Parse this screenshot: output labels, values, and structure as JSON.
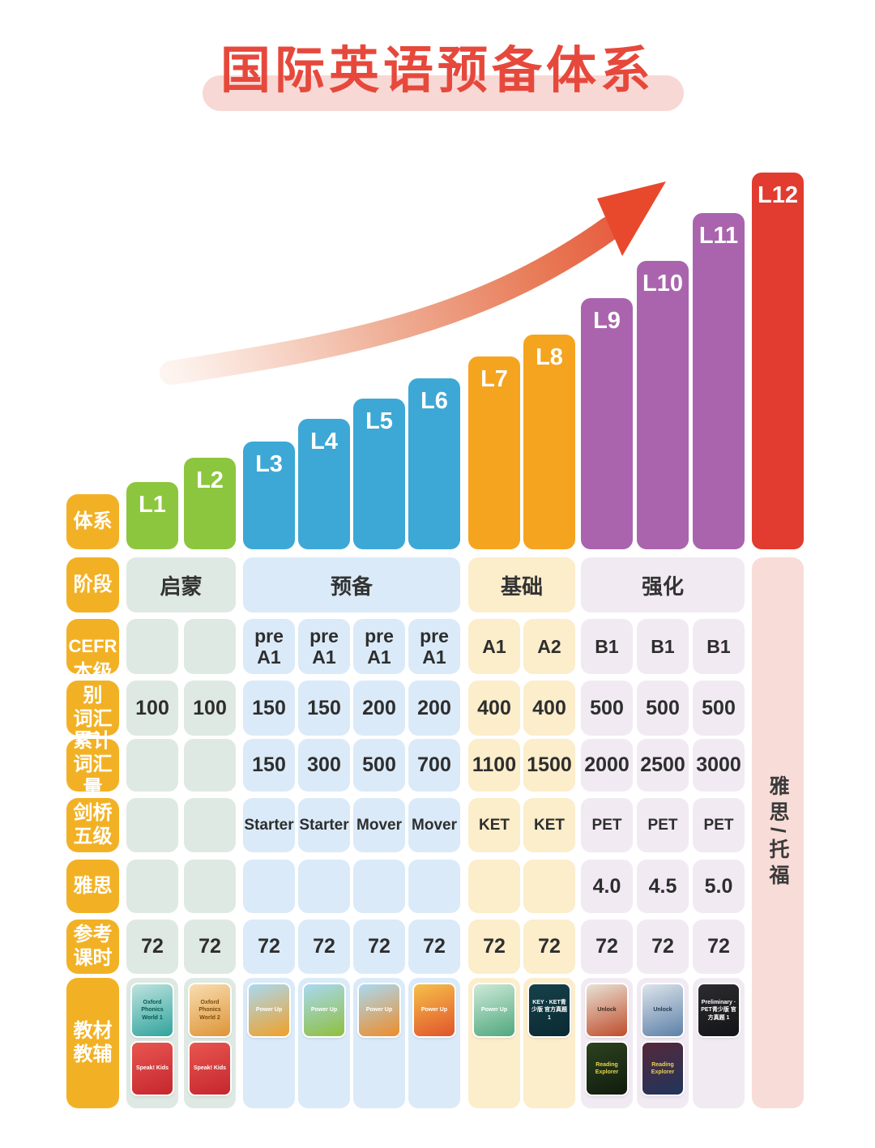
{
  "title": "国际英语预备体系",
  "palette": {
    "title_red": "#e6493c",
    "title_pill": "#f8d8d4",
    "label_bg": "#f2b125",
    "bar_green": "#8cc63e",
    "bar_blue": "#3da8d5",
    "bar_orange": "#f5a41f",
    "bar_purple": "#aa64ad",
    "bar_red": "#e23b2f",
    "cell_sage": "#dfe9e3",
    "cell_blue": "#daeaf8",
    "cell_cream": "#fcedcb",
    "cell_lavender": "#f1eaf3",
    "cell_pink": "#f8dcd8",
    "arrow_red": "#e64a2e",
    "text_dark": "#2e2e2e"
  },
  "row_headers": [
    {
      "id": "system",
      "lines": [
        "体系"
      ]
    },
    {
      "id": "stage",
      "lines": [
        "阶段"
      ]
    },
    {
      "id": "cefr",
      "lines": [
        "CEFR"
      ]
    },
    {
      "id": "level-vocab",
      "lines": [
        "本级别",
        "词汇量"
      ]
    },
    {
      "id": "cumulative-vocab",
      "lines": [
        "累计",
        "词汇量"
      ]
    },
    {
      "id": "cambridge-five",
      "lines": [
        "剑桥",
        "五级"
      ]
    },
    {
      "id": "ielts",
      "lines": [
        "雅思"
      ]
    },
    {
      "id": "reference-hours",
      "lines": [
        "参考",
        "课时"
      ]
    },
    {
      "id": "materials",
      "lines": [
        "教材",
        "教辅"
      ]
    }
  ],
  "stages": [
    {
      "id": "enlightenment",
      "label": "启蒙",
      "cols": [
        0,
        1
      ]
    },
    {
      "id": "preparation",
      "label": "预备",
      "cols": [
        2,
        5
      ]
    },
    {
      "id": "foundation",
      "label": "基础",
      "cols": [
        6,
        7
      ]
    },
    {
      "id": "intensive",
      "label": "强化",
      "cols": [
        8,
        10
      ]
    }
  ],
  "l12_column": {
    "label": "雅思/托福"
  },
  "levels": [
    {
      "id": "L1",
      "cefr": "",
      "level_vocab": "100",
      "cum_vocab": "",
      "cambridge": "",
      "ielts": "",
      "hours": "72",
      "books": [
        {
          "title": "Oxford Phonics World 1",
          "c1": "#bfe3df",
          "c2": "#2fa49c",
          "tc": "#06564f"
        },
        {
          "title": "Speak! Kids",
          "c1": "#e8564f",
          "c2": "#c5262f",
          "tc": "#ffffff"
        }
      ]
    },
    {
      "id": "L2",
      "cefr": "",
      "level_vocab": "100",
      "cum_vocab": "",
      "cambridge": "",
      "ielts": "",
      "hours": "72",
      "books": [
        {
          "title": "Oxford Phonics World 2",
          "c1": "#f8ddb0",
          "c2": "#de9436",
          "tc": "#7a4a08"
        },
        {
          "title": "Speak! Kids",
          "c1": "#e8564f",
          "c2": "#c5262f",
          "tc": "#ffffff"
        }
      ]
    },
    {
      "id": "L3",
      "cefr": "pre A1",
      "level_vocab": "150",
      "cum_vocab": "150",
      "cambridge": "Starter",
      "ielts": "",
      "hours": "72",
      "books": [
        {
          "title": "Power Up",
          "c1": "#a9d9f1",
          "c2": "#f0a028",
          "tc": "#ffffff"
        }
      ]
    },
    {
      "id": "L4",
      "cefr": "pre A1",
      "level_vocab": "150",
      "cum_vocab": "300",
      "cambridge": "Starter",
      "ielts": "",
      "hours": "72",
      "books": [
        {
          "title": "Power Up",
          "c1": "#a9d9f1",
          "c2": "#8fbf3d",
          "tc": "#ffffff"
        }
      ]
    },
    {
      "id": "L5",
      "cefr": "pre A1",
      "level_vocab": "200",
      "cum_vocab": "500",
      "cambridge": "Mover",
      "ielts": "",
      "hours": "72",
      "books": [
        {
          "title": "Power Up",
          "c1": "#a9d9f1",
          "c2": "#ee8c2a",
          "tc": "#ffffff"
        }
      ]
    },
    {
      "id": "L6",
      "cefr": "pre A1",
      "level_vocab": "200",
      "cum_vocab": "700",
      "cambridge": "Mover",
      "ielts": "",
      "hours": "72",
      "books": [
        {
          "title": "Power Up",
          "c1": "#f6c04a",
          "c2": "#e0542b",
          "tc": "#ffffff"
        }
      ]
    },
    {
      "id": "L7",
      "cefr": "A1",
      "level_vocab": "400",
      "cum_vocab": "1100",
      "cambridge": "KET",
      "ielts": "",
      "hours": "72",
      "books": [
        {
          "title": "Power Up",
          "c1": "#cde9d8",
          "c2": "#4fa87d",
          "tc": "#ffffff"
        }
      ]
    },
    {
      "id": "L8",
      "cefr": "A2",
      "level_vocab": "400",
      "cum_vocab": "1500",
      "cambridge": "KET",
      "ielts": "",
      "hours": "72",
      "books": [
        {
          "title": "KEY · KET青少版 官方真题 1",
          "c1": "#16414b",
          "c2": "#0a2a31",
          "tc": "#ffffff"
        }
      ]
    },
    {
      "id": "L9",
      "cefr": "B1",
      "level_vocab": "500",
      "cum_vocab": "2000",
      "cambridge": "PET",
      "ielts": "4.0",
      "hours": "72",
      "books": [
        {
          "title": "Unlock",
          "c1": "#e9e2d6",
          "c2": "#bf4c2a",
          "tc": "#3c2a1a"
        },
        {
          "title": "Reading Explorer",
          "c1": "#2c421f",
          "c2": "#101c0e",
          "tc": "#e8d44d"
        }
      ]
    },
    {
      "id": "L10",
      "cefr": "B1",
      "level_vocab": "500",
      "cum_vocab": "2500",
      "cambridge": "PET",
      "ielts": "4.5",
      "hours": "72",
      "books": [
        {
          "title": "Unlock",
          "c1": "#dde4eb",
          "c2": "#5c80a8",
          "tc": "#24384e"
        },
        {
          "title": "Reading Explorer",
          "c1": "#55283a",
          "c2": "#20355c",
          "tc": "#e8d44d"
        }
      ]
    },
    {
      "id": "L11",
      "cefr": "B1",
      "level_vocab": "500",
      "cum_vocab": "3000",
      "cambridge": "PET",
      "ielts": "5.0",
      "hours": "72",
      "books": [
        {
          "title": "Preliminary · PET青少版 官方真题 1",
          "c1": "#2c2c30",
          "c2": "#141416",
          "tc": "#ffffff"
        }
      ]
    },
    {
      "id": "L12",
      "cefr": "",
      "level_vocab": "",
      "cum_vocab": "",
      "cambridge": "",
      "ielts": "",
      "hours": "",
      "books": []
    }
  ],
  "chart_data": {
    "type": "bar",
    "title": "国际英语预备体系",
    "categories": [
      "L1",
      "L2",
      "L3",
      "L4",
      "L5",
      "L6",
      "L7",
      "L8",
      "L9",
      "L10",
      "L11",
      "L12"
    ],
    "values": [
      83,
      113,
      133,
      161,
      186,
      211,
      238,
      265,
      310,
      356,
      415,
      465
    ],
    "values_note": "装饰性阶梯柱状图，无数值轴，柱高为像素高度（逐级上升）",
    "bar_color_groups": [
      {
        "levels": [
          "L1",
          "L2"
        ],
        "color": "#8cc63e"
      },
      {
        "levels": [
          "L3",
          "L4",
          "L5",
          "L6"
        ],
        "color": "#3da8d5"
      },
      {
        "levels": [
          "L7",
          "L8"
        ],
        "color": "#f5a41f"
      },
      {
        "levels": [
          "L9",
          "L10",
          "L11"
        ],
        "color": "#aa64ad"
      },
      {
        "levels": [
          "L12"
        ],
        "color": "#e23b2f"
      }
    ],
    "annotations": [
      "上升箭头（橙红渐变）"
    ],
    "table": {
      "row_headers": [
        "体系",
        "阶段",
        "CEFR",
        "本级别词汇量",
        "累计词汇量",
        "剑桥五级",
        "雅思",
        "参考课时",
        "教材教辅"
      ],
      "columns": [
        "L1",
        "L2",
        "L3",
        "L4",
        "L5",
        "L6",
        "L7",
        "L8",
        "L9",
        "L10",
        "L11"
      ],
      "l12_merged_label": "雅思/托福",
      "rows": {
        "阶段": {
          "启蒙": [
            "L1",
            "L2"
          ],
          "预备": [
            "L3",
            "L4",
            "L5",
            "L6"
          ],
          "基础": [
            "L7",
            "L8"
          ],
          "强化": [
            "L9",
            "L10",
            "L11"
          ]
        },
        "CEFR": [
          "",
          "",
          "pre A1",
          "pre A1",
          "pre A1",
          "pre A1",
          "A1",
          "A2",
          "B1",
          "B1",
          "B1"
        ],
        "本级别词汇量": [
          "100",
          "100",
          "150",
          "150",
          "200",
          "200",
          "400",
          "400",
          "500",
          "500",
          "500"
        ],
        "累计词汇量": [
          "",
          "",
          "150",
          "300",
          "500",
          "700",
          "1100",
          "1500",
          "2000",
          "2500",
          "3000"
        ],
        "剑桥五级": [
          "",
          "",
          "Starter",
          "Starter",
          "Mover",
          "Mover",
          "KET",
          "KET",
          "PET",
          "PET",
          "PET"
        ],
        "雅思": [
          "",
          "",
          "",
          "",
          "",
          "",
          "",
          "",
          "4.0",
          "4.5",
          "5.0"
        ],
        "参考课时": [
          "72",
          "72",
          "72",
          "72",
          "72",
          "72",
          "72",
          "72",
          "72",
          "72",
          "72"
        ]
      }
    }
  }
}
